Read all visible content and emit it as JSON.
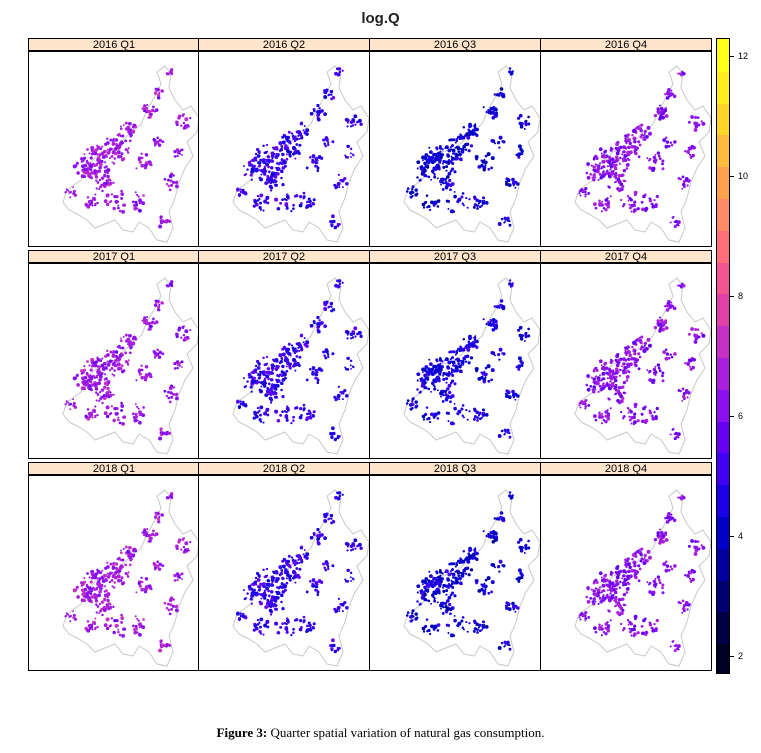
{
  "title": "log.Q",
  "caption": {
    "label": "Figure 3:",
    "text": "Quarter spatial variation of natural gas consumption."
  },
  "panels": [
    {
      "label": "2016 Q1",
      "level": 6.5
    },
    {
      "label": "2016 Q2",
      "level": 5.0
    },
    {
      "label": "2016 Q3",
      "level": 4.3
    },
    {
      "label": "2016 Q4",
      "level": 6.2
    },
    {
      "label": "2017 Q1",
      "level": 6.5
    },
    {
      "label": "2017 Q2",
      "level": 5.0
    },
    {
      "label": "2017 Q3",
      "level": 4.5
    },
    {
      "label": "2017 Q4",
      "level": 6.2
    },
    {
      "label": "2018 Q1",
      "level": 6.6
    },
    {
      "label": "2018 Q2",
      "level": 5.0
    },
    {
      "label": "2018 Q3",
      "level": 4.3
    },
    {
      "label": "2018 Q4",
      "level": 6.2
    }
  ],
  "legend": {
    "min": 1.7,
    "max": 12.3,
    "ticks": [
      "2",
      "4",
      "6",
      "8",
      "10",
      "12"
    ],
    "colors": [
      "#000022",
      "#000044",
      "#000070",
      "#00009f",
      "#0000c9",
      "#1a00e6",
      "#4000f5",
      "#6600f5",
      "#8a10f0",
      "#a820dd",
      "#c630c4",
      "#e040a8",
      "#f25590",
      "#ff6f7a",
      "#ff8a64",
      "#ffa24e",
      "#ffbb3a",
      "#ffd52a",
      "#ffed1e",
      "#ffff1a"
    ]
  }
}
